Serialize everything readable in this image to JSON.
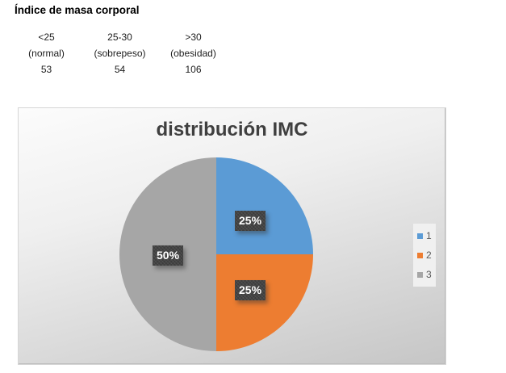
{
  "header": {
    "title": "Índice de masa corporal",
    "columns": [
      {
        "range": "<25",
        "label": "(normal)",
        "value": "53"
      },
      {
        "range": "25-30",
        "label": "(sobrepeso)",
        "value": "54"
      },
      {
        "range": ">30",
        "label": "(obesidad)",
        "value": "106"
      }
    ]
  },
  "chart_data": {
    "type": "pie",
    "title": "distribución IMC",
    "legend_position": "right",
    "start_angle_deg": 0,
    "direction": "clockwise",
    "label_box_color": "#3d3d3d",
    "slices": [
      {
        "legend_label": "1",
        "value": 25,
        "display": "25%",
        "color": "#5B9BD5"
      },
      {
        "legend_label": "2",
        "value": 25,
        "display": "25%",
        "color": "#ED7D31"
      },
      {
        "legend_label": "3",
        "value": 50,
        "display": "50%",
        "color": "#A6A6A6"
      }
    ]
  }
}
